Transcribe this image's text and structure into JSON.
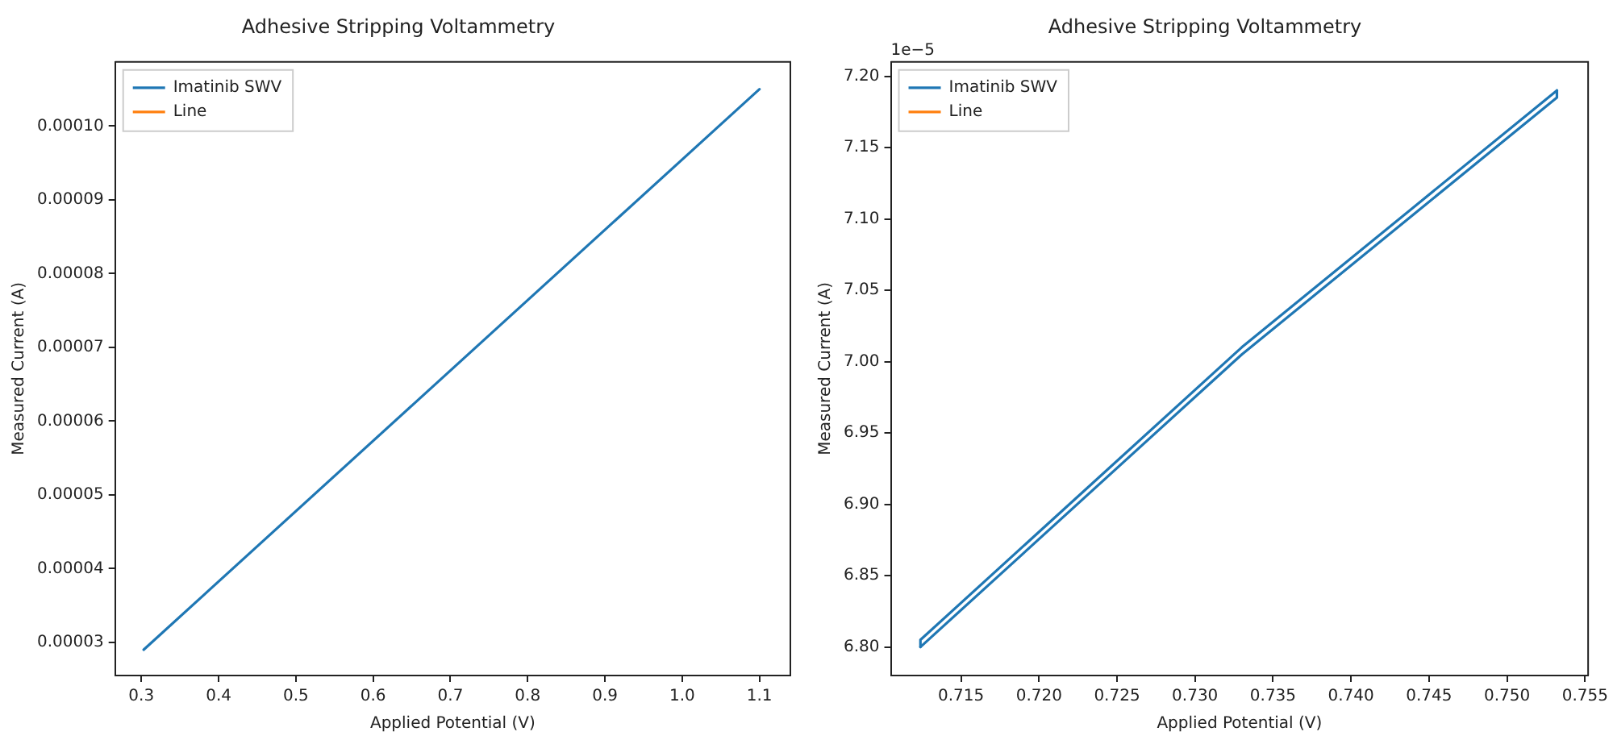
{
  "chart_data": [
    {
      "type": "line",
      "title": "Adhesive Stripping Voltammetry",
      "xlabel": "Applied Potential (V)",
      "ylabel": "Measured Current (A)",
      "legend": "top left",
      "grid": false,
      "marker": "none",
      "line_style": "solid",
      "xlim": [
        0.266,
        1.14
      ],
      "xticks": [
        {
          "value": 0.3,
          "label": "0.3"
        },
        {
          "value": 0.4,
          "label": "0.4"
        },
        {
          "value": 0.5,
          "label": "0.5"
        },
        {
          "value": 0.6,
          "label": "0.6"
        },
        {
          "value": 0.7,
          "label": "0.7"
        },
        {
          "value": 0.8,
          "label": "0.8"
        },
        {
          "value": 0.9,
          "label": "0.9"
        },
        {
          "value": 1.0,
          "label": "1.0"
        },
        {
          "value": 1.1,
          "label": "1.1"
        }
      ],
      "ylim": [
        2.55e-05,
        0.0001087
      ],
      "yticks": [
        {
          "value": 3e-05,
          "label": "0.00003"
        },
        {
          "value": 4e-05,
          "label": "0.00004"
        },
        {
          "value": 5e-05,
          "label": "0.00005"
        },
        {
          "value": 6e-05,
          "label": "0.00006"
        },
        {
          "value": 7e-05,
          "label": "0.00007"
        },
        {
          "value": 8e-05,
          "label": "0.00008"
        },
        {
          "value": 9e-05,
          "label": "0.00009"
        },
        {
          "value": 0.0001,
          "label": "0.00010"
        }
      ],
      "series": [
        {
          "name": "Imatinib SWV",
          "color": "#1f77b4",
          "x": [
            0.303,
            1.1
          ],
          "values": [
            2.9e-05,
            0.000105
          ]
        },
        {
          "name": "Line",
          "color": "#ff7f0e"
        }
      ]
    },
    {
      "type": "line",
      "title": "Adhesive Stripping Voltammetry",
      "xlabel": "Applied Potential (V)",
      "ylabel": "Measured Current (A)",
      "legend": "top left",
      "grid": false,
      "marker": "none",
      "line_style": "solid",
      "annotations": [
        "1e−5"
      ],
      "xlim": [
        0.7105,
        0.7552
      ],
      "xticks": [
        0.715,
        {
          "value": 0.72,
          "label": "0.720"
        },
        0.725,
        {
          "value": 0.73,
          "label": "0.730"
        },
        0.735,
        {
          "value": 0.74,
          "label": "0.740"
        },
        0.745,
        {
          "value": 0.75,
          "label": "0.750"
        },
        0.755
      ],
      "ylim": [
        6.78,
        7.21
      ],
      "yticks": [
        {
          "value": 6.8,
          "label": "6.80"
        },
        6.85,
        {
          "value": 6.9,
          "label": "6.90"
        },
        6.95,
        {
          "value": 7.0,
          "label": "7.00"
        },
        7.05,
        {
          "value": 7.1,
          "label": "7.10"
        },
        7.15,
        {
          "value": 7.2,
          "label": "7.20"
        }
      ],
      "series": [
        {
          "name": "Imatinib SWV",
          "color": "#1f77b4",
          "x": [
            0.7124,
            0.733,
            0.7532,
            0.7532
          ],
          "values": [
            6.8,
            7.005,
            7.185,
            7.19
          ]
        },
        {
          "name": "Line",
          "color": "#ff7f0e"
        },
        {
          "color": "#1f77b4",
          "x": [
            0.7124,
            0.7124,
            0.733,
            0.7532
          ],
          "values": [
            6.8,
            6.805,
            7.01,
            7.19
          ]
        }
      ]
    }
  ]
}
